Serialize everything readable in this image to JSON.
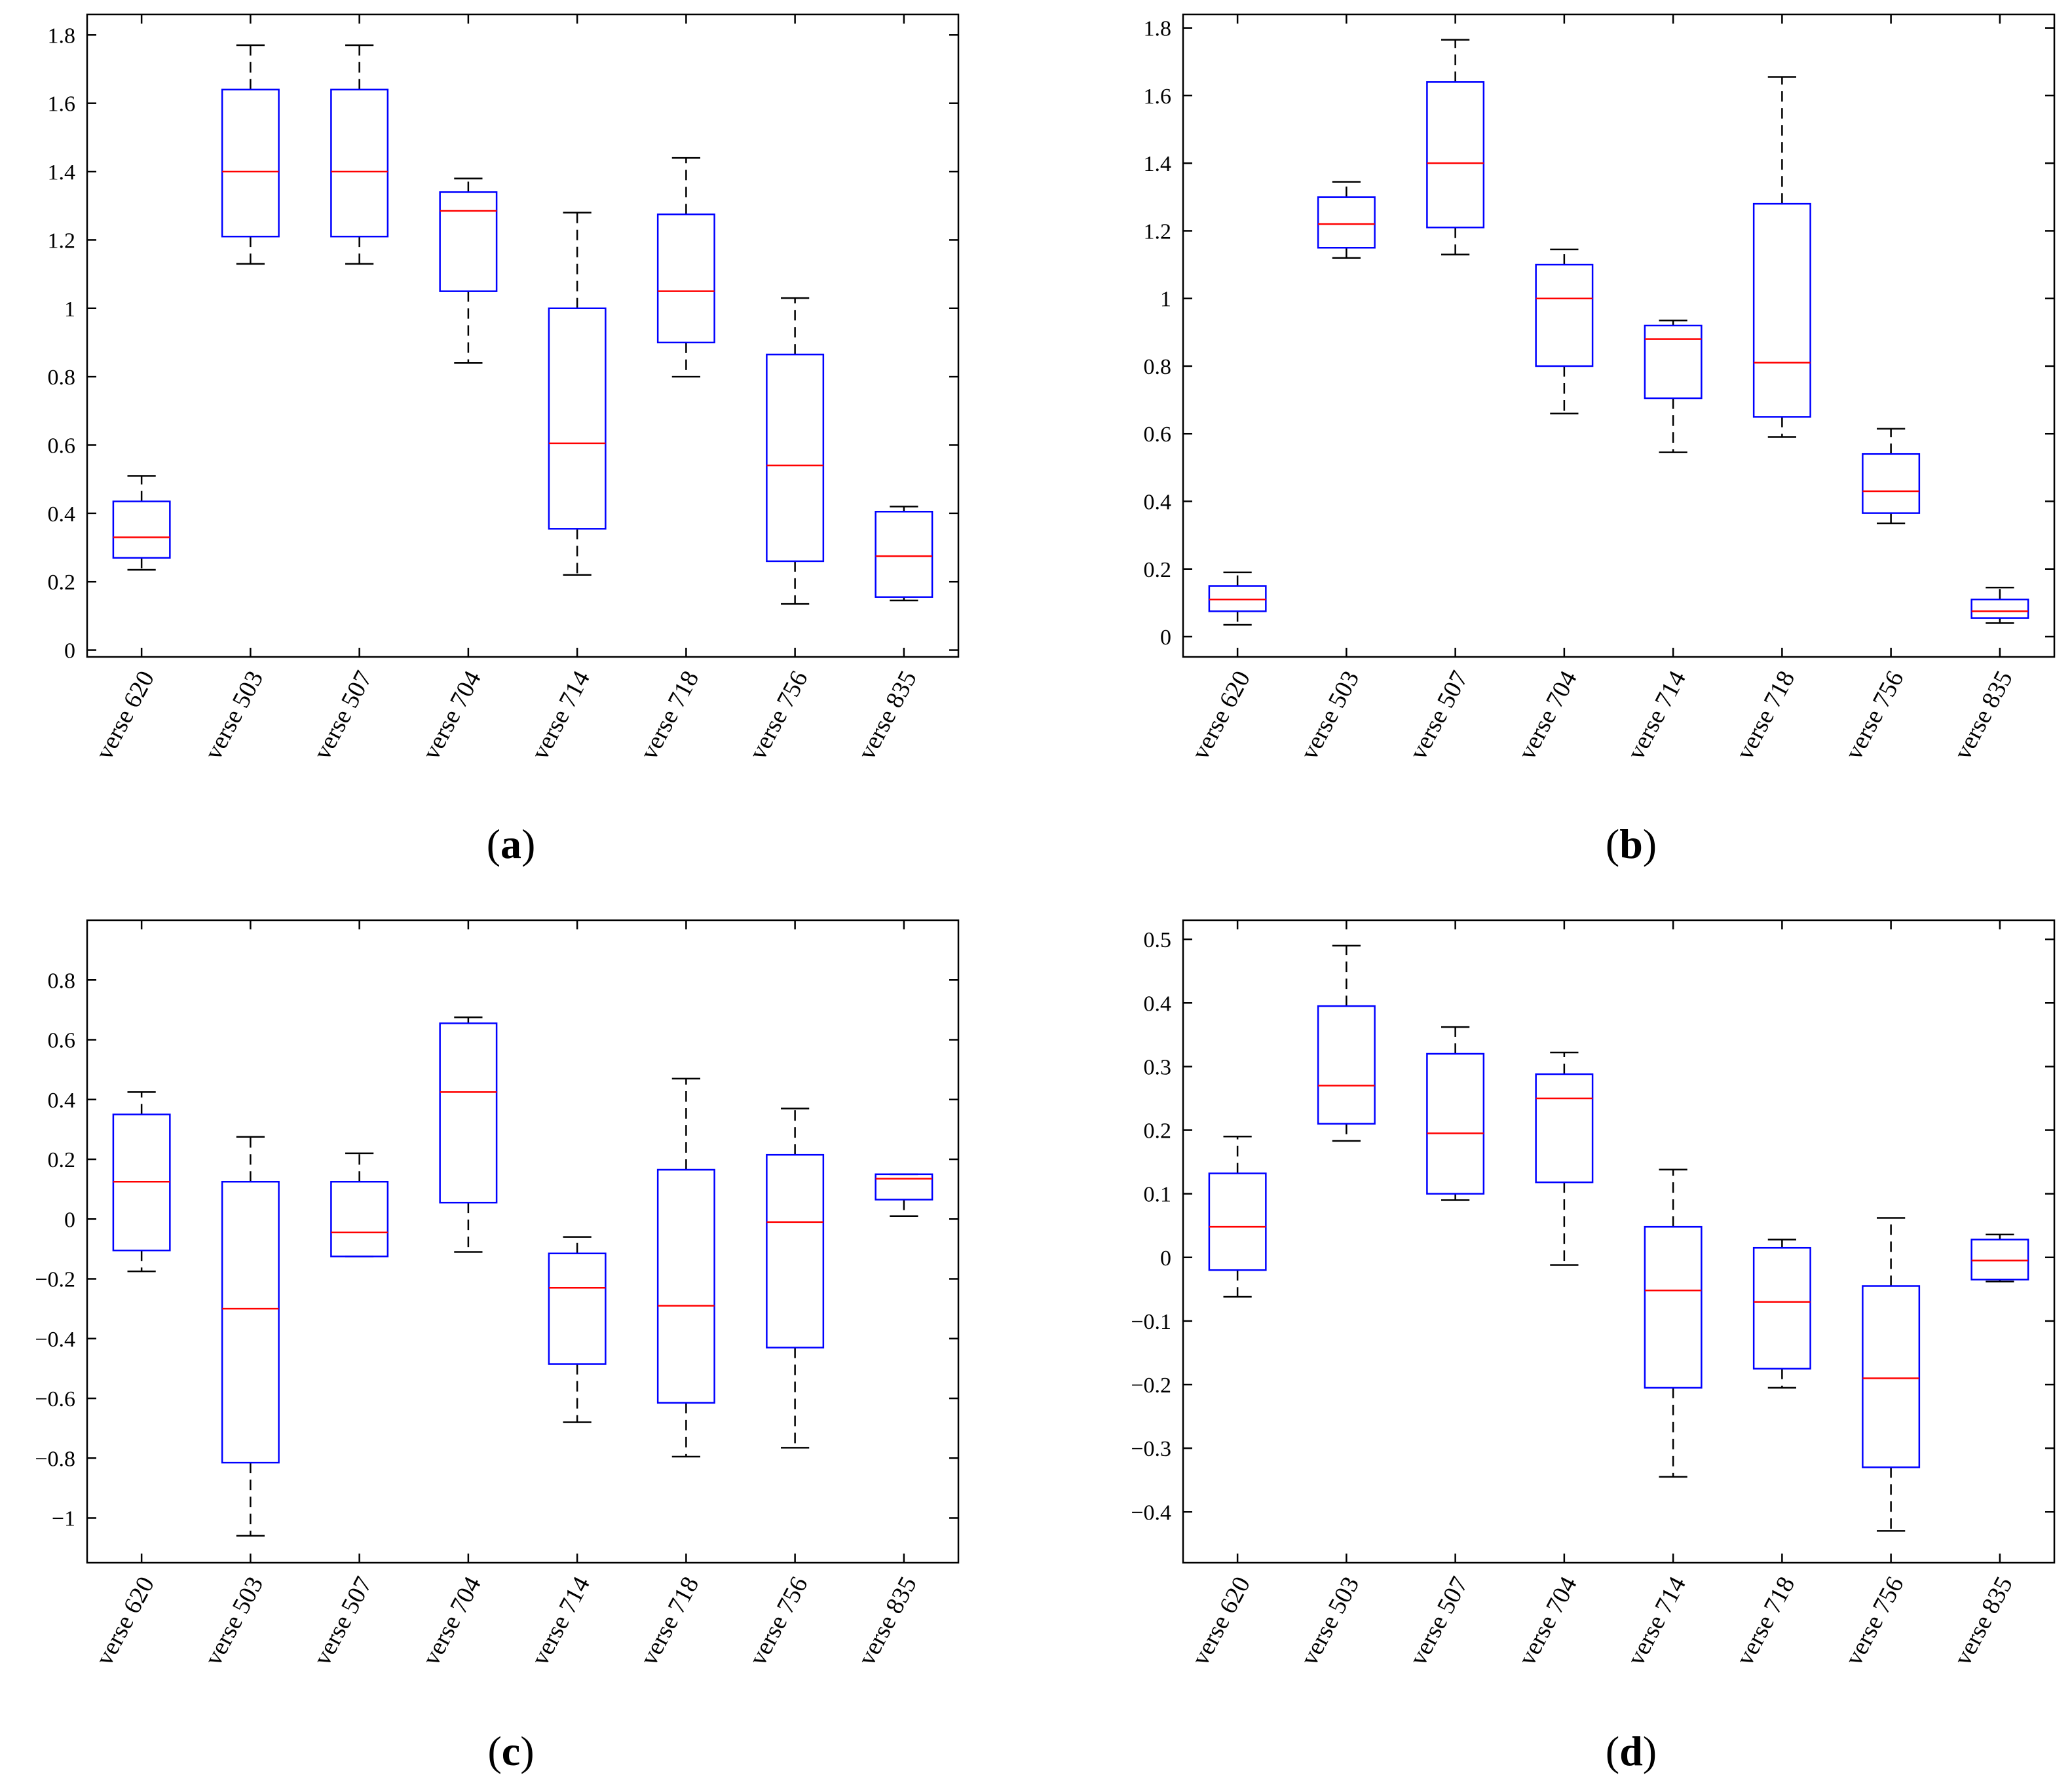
{
  "chart_data": [
    {
      "type": "box",
      "panel_label": "a",
      "categories": [
        "verse 620",
        "verse 503",
        "verse 507",
        "verse 704",
        "verse 714",
        "verse 718",
        "verse 756",
        "verse 835"
      ],
      "ylim": [
        -0.02,
        1.86
      ],
      "yticks": [
        0,
        0.2,
        0.4,
        0.6,
        0.8,
        1,
        1.2,
        1.4,
        1.6,
        1.8
      ],
      "ytick_labels": [
        "0",
        "0.2",
        "0.4",
        "0.6",
        "0.8",
        "1",
        "1.2",
        "1.4",
        "1.6",
        "1.8"
      ],
      "boxes": [
        {
          "min": 0.235,
          "q1": 0.27,
          "median": 0.33,
          "q3": 0.435,
          "max": 0.51
        },
        {
          "min": 1.13,
          "q1": 1.21,
          "median": 1.4,
          "q3": 1.64,
          "max": 1.77
        },
        {
          "min": 1.13,
          "q1": 1.21,
          "median": 1.4,
          "q3": 1.64,
          "max": 1.77
        },
        {
          "min": 0.84,
          "q1": 1.05,
          "median": 1.285,
          "q3": 1.34,
          "max": 1.38
        },
        {
          "min": 0.22,
          "q1": 0.355,
          "median": 0.605,
          "q3": 1.0,
          "max": 1.28
        },
        {
          "min": 0.8,
          "q1": 0.9,
          "median": 1.05,
          "q3": 1.275,
          "max": 1.44
        },
        {
          "min": 0.135,
          "q1": 0.26,
          "median": 0.54,
          "q3": 0.865,
          "max": 1.03
        },
        {
          "min": 0.145,
          "q1": 0.155,
          "median": 0.275,
          "q3": 0.405,
          "max": 0.42
        }
      ],
      "grid": false
    },
    {
      "type": "box",
      "panel_label": "b",
      "categories": [
        "verse 620",
        "verse 503",
        "verse 507",
        "verse 704",
        "verse 714",
        "verse 718",
        "verse 756",
        "verse 835"
      ],
      "ylim": [
        -0.06,
        1.84
      ],
      "yticks": [
        0,
        0.2,
        0.4,
        0.6,
        0.8,
        1,
        1.2,
        1.4,
        1.6,
        1.8
      ],
      "ytick_labels": [
        "0",
        "0.2",
        "0.4",
        "0.6",
        "0.8",
        "1",
        "1.2",
        "1.4",
        "1.6",
        "1.8"
      ],
      "boxes": [
        {
          "min": 0.035,
          "q1": 0.075,
          "median": 0.11,
          "q3": 0.15,
          "max": 0.19
        },
        {
          "min": 1.12,
          "q1": 1.15,
          "median": 1.22,
          "q3": 1.3,
          "max": 1.345
        },
        {
          "min": 1.13,
          "q1": 1.21,
          "median": 1.4,
          "q3": 1.64,
          "max": 1.765
        },
        {
          "min": 0.66,
          "q1": 0.8,
          "median": 1.0,
          "q3": 1.1,
          "max": 1.145
        },
        {
          "min": 0.545,
          "q1": 0.705,
          "median": 0.88,
          "q3": 0.92,
          "max": 0.935
        },
        {
          "min": 0.59,
          "q1": 0.65,
          "median": 0.81,
          "q3": 1.28,
          "max": 1.655
        },
        {
          "min": 0.335,
          "q1": 0.365,
          "median": 0.43,
          "q3": 0.54,
          "max": 0.615
        },
        {
          "min": 0.04,
          "q1": 0.055,
          "median": 0.075,
          "q3": 0.11,
          "max": 0.145
        }
      ],
      "grid": false
    },
    {
      "type": "box",
      "panel_label": "c",
      "categories": [
        "verse 620",
        "verse 503",
        "verse 507",
        "verse 704",
        "verse 714",
        "verse 718",
        "verse 756",
        "verse 835"
      ],
      "ylim": [
        -1.15,
        1.0
      ],
      "yticks": [
        -1,
        -0.8,
        -0.6,
        -0.4,
        -0.2,
        0,
        0.2,
        0.4,
        0.6,
        0.8
      ],
      "ytick_labels": [
        "−1",
        "−0.8",
        "−0.6",
        "−0.4",
        "−0.2",
        "0",
        "0.2",
        "0.4",
        "0.6",
        "0.8"
      ],
      "boxes": [
        {
          "min": -0.175,
          "q1": -0.105,
          "median": 0.125,
          "q3": 0.35,
          "max": 0.425
        },
        {
          "min": -1.06,
          "q1": -0.815,
          "median": -0.3,
          "q3": 0.125,
          "max": 0.275
        },
        {
          "min": -0.125,
          "q1": -0.125,
          "median": -0.045,
          "q3": 0.125,
          "max": 0.22
        },
        {
          "min": -0.11,
          "q1": 0.055,
          "median": 0.425,
          "q3": 0.655,
          "max": 0.675
        },
        {
          "min": -0.68,
          "q1": -0.485,
          "median": -0.23,
          "q3": -0.115,
          "max": -0.06
        },
        {
          "min": -0.795,
          "q1": -0.615,
          "median": -0.29,
          "q3": 0.165,
          "max": 0.47
        },
        {
          "min": -0.765,
          "q1": -0.43,
          "median": -0.01,
          "q3": 0.215,
          "max": 0.37
        },
        {
          "min": 0.01,
          "q1": 0.065,
          "median": 0.135,
          "q3": 0.15,
          "max": 0.15
        }
      ],
      "grid": false
    },
    {
      "type": "box",
      "panel_label": "d",
      "categories": [
        "verse 620",
        "verse 503",
        "verse 507",
        "verse 704",
        "verse 714",
        "verse 718",
        "verse 756",
        "verse 835"
      ],
      "ylim": [
        -0.48,
        0.53
      ],
      "yticks": [
        -0.4,
        -0.3,
        -0.2,
        -0.1,
        0,
        0.1,
        0.2,
        0.3,
        0.4,
        0.5
      ],
      "ytick_labels": [
        "−0.4",
        "−0.3",
        "−0.2",
        "−0.1",
        "0",
        "0.1",
        "0.2",
        "0.3",
        "0.4",
        "0.5"
      ],
      "boxes": [
        {
          "min": -0.062,
          "q1": -0.02,
          "median": 0.048,
          "q3": 0.132,
          "max": 0.19
        },
        {
          "min": 0.183,
          "q1": 0.21,
          "median": 0.27,
          "q3": 0.395,
          "max": 0.49
        },
        {
          "min": 0.09,
          "q1": 0.1,
          "median": 0.195,
          "q3": 0.32,
          "max": 0.362
        },
        {
          "min": -0.012,
          "q1": 0.118,
          "median": 0.25,
          "q3": 0.288,
          "max": 0.322
        },
        {
          "min": -0.345,
          "q1": -0.205,
          "median": -0.052,
          "q3": 0.048,
          "max": 0.138
        },
        {
          "min": -0.205,
          "q1": -0.175,
          "median": -0.07,
          "q3": 0.015,
          "max": 0.028
        },
        {
          "min": -0.43,
          "q1": -0.33,
          "median": -0.19,
          "q3": -0.045,
          "max": 0.062
        },
        {
          "min": -0.038,
          "q1": -0.035,
          "median": -0.005,
          "q3": 0.028,
          "max": 0.036
        }
      ],
      "grid": false
    }
  ],
  "colors": {
    "box": "#0000ff",
    "median": "#ff0000",
    "whisker": "#000000",
    "axis": "#000000"
  }
}
